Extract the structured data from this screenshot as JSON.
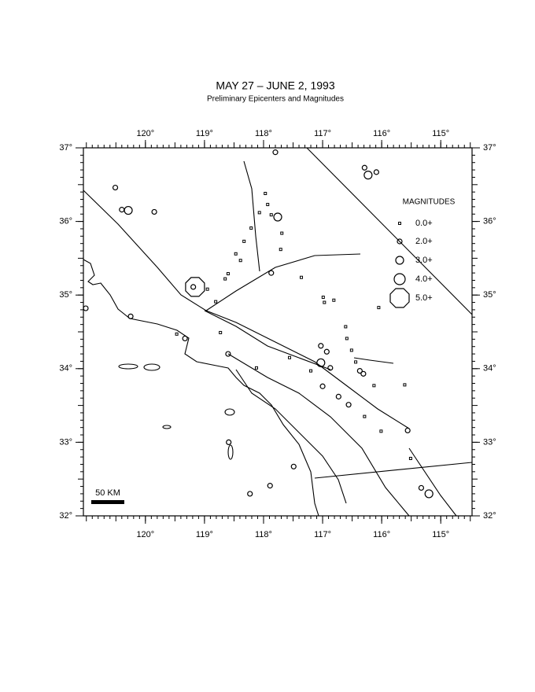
{
  "map": {
    "title": "MAY 27 – JUNE 2, 1993",
    "subtitle": "Preliminary Epicenters and Magnitudes",
    "xlim": [
      121.05,
      114.47
    ],
    "ylim": [
      32.0,
      37.0
    ],
    "xticks": [
      {
        "value": 120,
        "label": "120°"
      },
      {
        "value": 119,
        "label": "119°"
      },
      {
        "value": 118,
        "label": "118°"
      },
      {
        "value": 117,
        "label": "117°"
      },
      {
        "value": 116,
        "label": "116°"
      },
      {
        "value": 115,
        "label": "115°"
      }
    ],
    "yticks": [
      {
        "value": 37,
        "label": "37°"
      },
      {
        "value": 36,
        "label": "36°"
      },
      {
        "value": 35,
        "label": "35°"
      },
      {
        "value": 34,
        "label": "34°"
      },
      {
        "value": 33,
        "label": "33°"
      },
      {
        "value": 32,
        "label": "32°"
      }
    ],
    "legend": {
      "title": "MAGNITUDES",
      "items": [
        {
          "mag": 0,
          "label": "0.0+"
        },
        {
          "mag": 2,
          "label": "2.0+"
        },
        {
          "mag": 3,
          "label": "3.0+"
        },
        {
          "mag": 4,
          "label": "4.0+"
        },
        {
          "mag": 5,
          "label": "5.0+"
        }
      ]
    },
    "scale_bar": "50 KM",
    "events": {
      "lon": [
        117.8,
        116.29,
        116.23,
        116.09,
        120.51,
        120.4,
        120.29,
        119.85,
        117.97,
        117.93,
        118.07,
        117.87,
        117.76,
        117.69,
        117.71,
        118.21,
        118.33,
        118.47,
        118.39,
        118.6,
        118.65,
        117.87,
        117.36,
        119.16,
        119.19,
        118.95,
        118.81,
        121.01,
        120.25,
        116.99,
        116.97,
        116.81,
        116.05,
        119.47,
        119.33,
        118.73,
        118.6,
        117.03,
        116.93,
        117.03,
        116.87,
        116.61,
        116.59,
        116.51,
        116.44,
        116.37,
        116.31,
        116.13,
        115.61,
        117.0,
        116.73,
        116.56,
        116.29,
        115.56,
        118.59,
        117.49,
        117.89,
        118.23,
        115.33,
        115.2,
        118.12,
        117.56,
        117.2,
        116.01,
        115.51
      ],
      "lat": [
        36.94,
        36.73,
        36.63,
        36.67,
        36.46,
        36.16,
        36.15,
        36.13,
        36.38,
        36.23,
        36.12,
        36.09,
        36.06,
        35.84,
        35.62,
        35.91,
        35.73,
        35.56,
        35.47,
        35.29,
        35.22,
        35.3,
        35.24,
        35.11,
        35.11,
        35.08,
        34.91,
        34.82,
        34.71,
        34.97,
        34.9,
        34.93,
        34.83,
        34.47,
        34.41,
        34.49,
        34.2,
        34.31,
        34.23,
        34.08,
        34.01,
        34.57,
        34.41,
        34.25,
        34.09,
        33.97,
        33.93,
        33.77,
        33.78,
        33.76,
        33.62,
        33.51,
        33.35,
        33.16,
        33.0,
        32.67,
        32.41,
        32.3,
        32.38,
        32.3,
        34.01,
        34.15,
        33.97,
        33.15,
        32.78
      ],
      "mag": [
        2,
        2,
        3,
        2,
        2,
        2,
        3,
        2,
        0,
        0,
        0,
        0,
        3,
        0,
        0,
        0,
        0,
        0,
        0,
        0,
        0,
        2,
        0,
        5,
        2,
        0,
        0,
        2,
        2,
        0,
        0,
        0,
        0,
        0,
        2,
        0,
        2,
        2,
        2,
        3,
        2,
        0,
        0,
        0,
        0,
        2,
        2,
        0,
        0,
        2,
        2,
        2,
        0,
        2,
        2,
        2,
        2,
        2,
        2,
        3,
        0,
        0,
        0,
        0,
        0
      ]
    }
  }
}
